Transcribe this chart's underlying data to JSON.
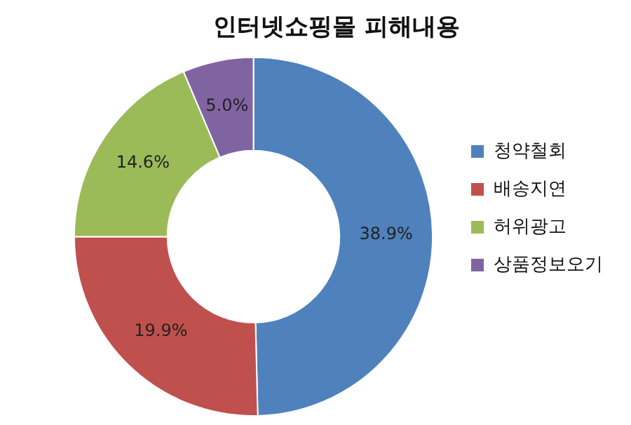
{
  "chart_data": {
    "type": "donut",
    "title": "인터넷쇼핑몰 피해내용",
    "categories": [
      "청약철회",
      "배송지연",
      "허위광고",
      "상품정보오기"
    ],
    "values": [
      38.9,
      19.9,
      14.6,
      5.0
    ],
    "colors": [
      "#4f81bd",
      "#c0504d",
      "#9bbb59",
      "#8064a2"
    ],
    "value_labels": [
      "38.9%",
      "19.9%",
      "14.6%",
      "5.0%"
    ],
    "legend": "right"
  }
}
